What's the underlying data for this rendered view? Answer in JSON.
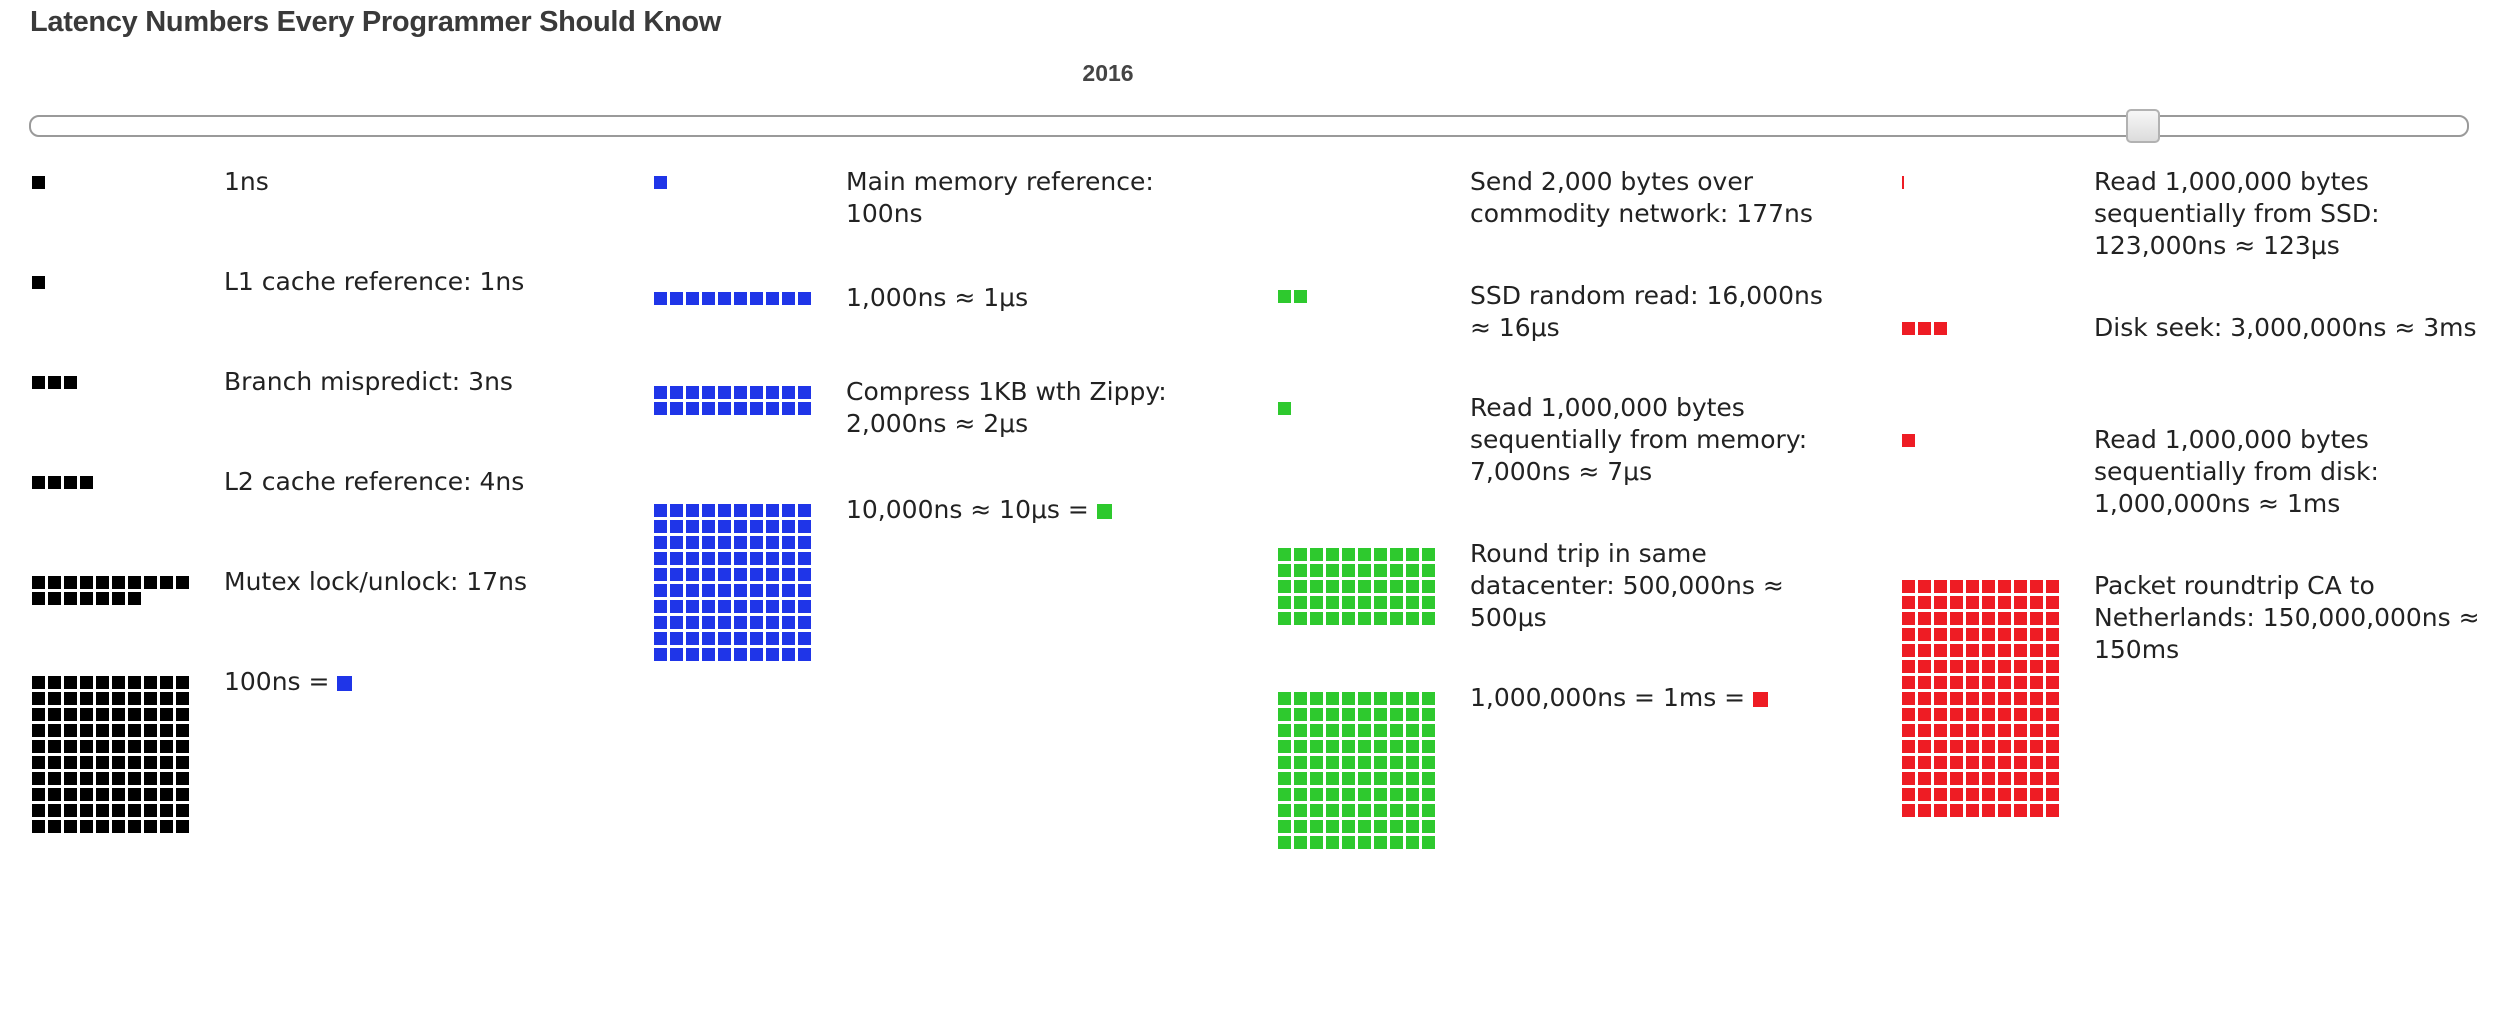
{
  "title": "Latency Numbers Every Programmer Should Know",
  "year": "2016",
  "slider": {
    "value_fraction": 0.88
  },
  "colors": {
    "ns": "#000000",
    "hundred_ns": "#1f35e8",
    "ten_us": "#2ec92e",
    "ms": "#ee1c24"
  },
  "columns": [
    {
      "items": [
        {
          "label": "1ns",
          "color": "ns",
          "squares": 1,
          "cols": 10
        },
        {
          "label": "L1 cache reference: 1ns",
          "color": "ns",
          "squares": 1,
          "cols": 10
        },
        {
          "label": "Branch mispredict: 3ns",
          "color": "ns",
          "squares": 3,
          "cols": 10
        },
        {
          "label": "L2 cache reference: 4ns",
          "color": "ns",
          "squares": 4,
          "cols": 10
        },
        {
          "label": "Mutex lock/unlock: 17ns",
          "color": "ns",
          "squares": 17,
          "cols": 10
        },
        {
          "label": "100ns =",
          "color": "ns",
          "squares": 100,
          "cols": 10,
          "swatch": "hundred_ns"
        }
      ]
    },
    {
      "items": [
        {
          "label": "Main memory reference: 100ns",
          "color": "hundred_ns",
          "squares": 1,
          "cols": 10
        },
        {
          "label": "1,000ns ≈ 1μs",
          "color": "hundred_ns",
          "squares": 10,
          "cols": 10
        },
        {
          "label": "Compress 1KB wth Zippy: 2,000ns ≈ 2μs",
          "color": "hundred_ns",
          "squares": 20,
          "cols": 10
        },
        {
          "label": "10,000ns ≈ 10μs =",
          "color": "hundred_ns",
          "squares": 100,
          "cols": 10,
          "swatch": "ten_us"
        }
      ]
    },
    {
      "items": [
        {
          "label": "Send 2,000 bytes over commodity network: 177ns",
          "color": "ten_us",
          "squares": 0,
          "cols": 10
        },
        {
          "label": "SSD random read: 16,000ns ≈ 16μs",
          "color": "ten_us",
          "squares": 2,
          "cols": 10
        },
        {
          "label": "Read 1,000,000 bytes sequentially from memory: 7,000ns ≈ 7μs",
          "color": "ten_us",
          "squares": 1,
          "cols": 10
        },
        {
          "label": "Round trip in same datacenter: 500,000ns ≈ 500μs",
          "color": "ten_us",
          "squares": 50,
          "cols": 10
        },
        {
          "label": "1,000,000ns = 1ms =",
          "color": "ten_us",
          "squares": 100,
          "cols": 10,
          "swatch": "ms"
        }
      ]
    },
    {
      "items": [
        {
          "label": "Read 1,000,000 bytes sequentially from SSD: 123,000ns ≈ 123μs",
          "color": "ms",
          "squares": 0.12,
          "cols": 10
        },
        {
          "label": "Disk seek: 3,000,000ns ≈ 3ms",
          "color": "ms",
          "squares": 3,
          "cols": 10
        },
        {
          "label": "Read 1,000,000 bytes sequentially from disk: 1,000,000ns ≈ 1ms",
          "color": "ms",
          "squares": 1,
          "cols": 10
        },
        {
          "label": "Packet roundtrip CA to Netherlands: 150,000,000ns ≈ 150ms",
          "color": "ms",
          "squares": 150,
          "cols": 10
        }
      ]
    }
  ]
}
